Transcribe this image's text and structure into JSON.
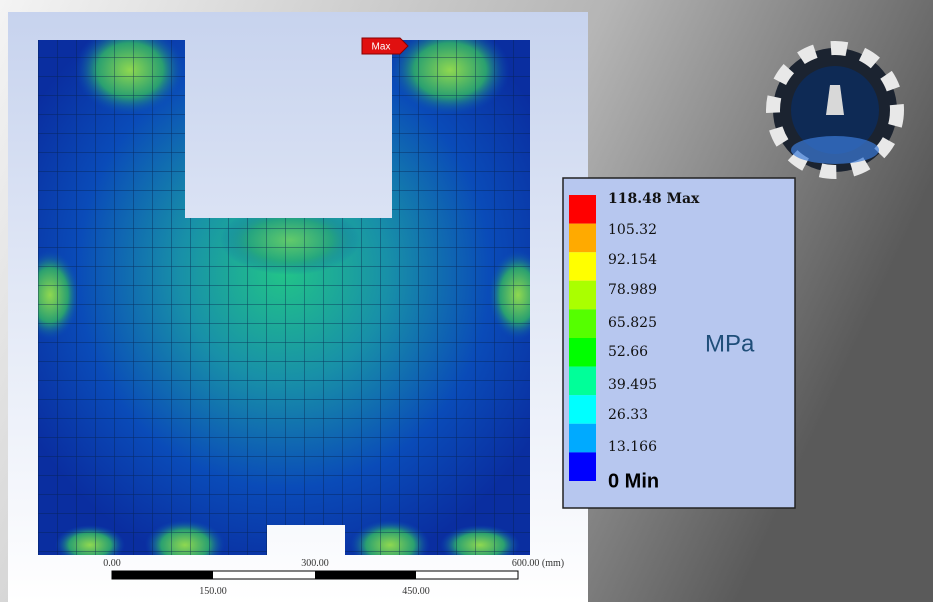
{
  "probe": {
    "label": "Max"
  },
  "legend": {
    "labels": [
      "118.48 Max",
      "105.32",
      "92.154",
      "78.989",
      "65.825",
      "52.66",
      "39.495",
      "26.33",
      "13.166",
      "0 Min"
    ],
    "colors": [
      "#ff0000",
      "#ffaa00",
      "#ffff00",
      "#aaff00",
      "#55ff00",
      "#00ff00",
      "#00ff99",
      "#00ffff",
      "#00aaff",
      "#0000ff"
    ],
    "unit": "MPa"
  },
  "scale_bar": {
    "top_labels": [
      "0.00",
      "300.00",
      "600.00 (mm)"
    ],
    "bottom_labels": [
      "150.00",
      "450.00"
    ]
  }
}
